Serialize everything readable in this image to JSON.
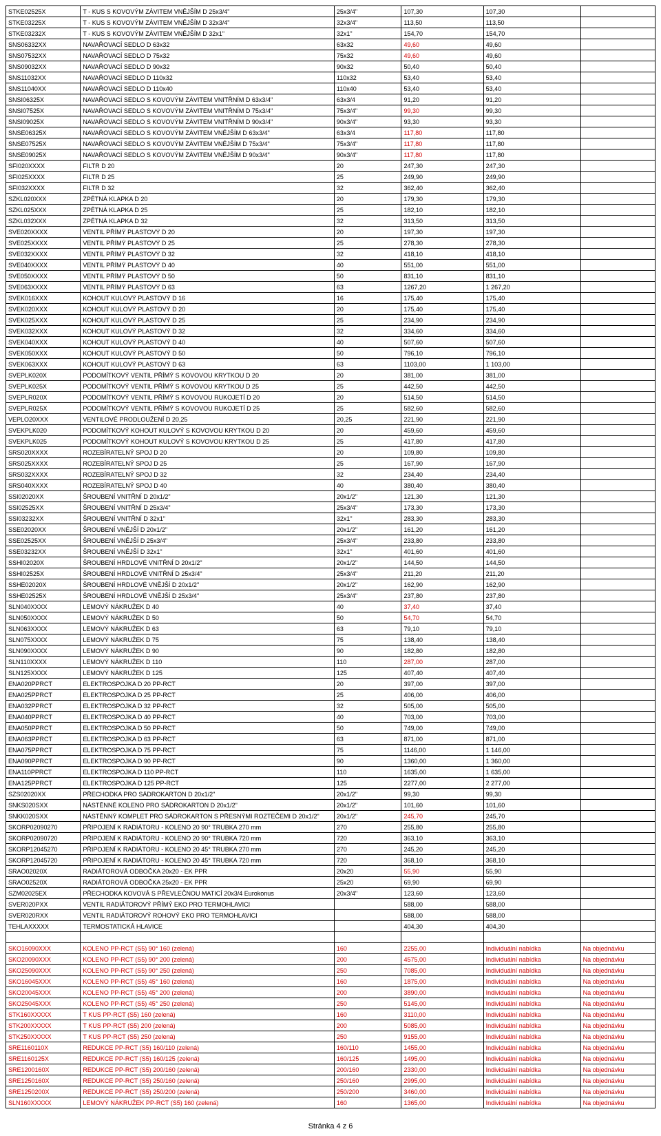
{
  "footer": "Stránka 4 z 6",
  "rows": [
    {
      "c": [
        "STKE02525X",
        "T - KUS S KOVOVÝM ZÁVITEM VNĚJŠÍM D 25x3/4\"",
        "25x3/4\"",
        "107,30",
        "107,30",
        ""
      ]
    },
    {
      "c": [
        "STKE03225X",
        "T - KUS S KOVOVÝM ZÁVITEM VNĚJŠÍM D 32x3/4\"",
        "32x3/4\"",
        "113,50",
        "113,50",
        ""
      ]
    },
    {
      "c": [
        "STKE03232X",
        "T - KUS S KOVOVÝM ZÁVITEM VNĚJŠÍM D 32x1\"",
        "32x1\"",
        "154,70",
        "154,70",
        ""
      ]
    },
    {
      "c": [
        "SNS06332XX",
        "NAVAŘOVACÍ SEDLO D 63x32",
        "63x32",
        "49,60",
        "49,60",
        ""
      ],
      "r3": true
    },
    {
      "c": [
        "SNS07532XX",
        "NAVAŘOVACÍ SEDLO D 75x32",
        "75x32",
        "49,60",
        "49,60",
        ""
      ],
      "r3": true
    },
    {
      "c": [
        "SNS09032XX",
        "NAVAŘOVACÍ SEDLO D 90x32",
        "90x32",
        "50,40",
        "50,40",
        ""
      ]
    },
    {
      "c": [
        "SNS11032XX",
        "NAVAŘOVACÍ SEDLO D 110x32",
        "110x32",
        "53,40",
        "53,40",
        ""
      ]
    },
    {
      "c": [
        "SNS11040XX",
        "NAVAŘOVACÍ SEDLO D 110x40",
        "110x40",
        "53,40",
        "53,40",
        ""
      ]
    },
    {
      "c": [
        "SNSI06325X",
        "NAVAŘOVACÍ SEDLO S KOVOVÝM ZÁVITEM VNITŘNÍM D 63x3/4\"",
        "63x3/4",
        "91,20",
        "91,20",
        ""
      ]
    },
    {
      "c": [
        "SNSI07525X",
        "NAVAŘOVACÍ SEDLO S KOVOVÝM ZÁVITEM VNITŘNÍM D 75x3/4\"",
        "75x3/4\"",
        "99,30",
        "99,30",
        ""
      ],
      "r3": true
    },
    {
      "c": [
        "SNSI09025X",
        "NAVAŘOVACÍ SEDLO S KOVOVÝM ZÁVITEM VNITŘNÍM D 90x3/4\"",
        "90x3/4\"",
        "93,30",
        "93,30",
        ""
      ]
    },
    {
      "c": [
        "SNSE06325X",
        "NAVAŘOVACÍ SEDLO S KOVOVÝM ZÁVITEM VNĚJŠÍM D 63x3/4\"",
        "63x3/4",
        "117,80",
        "117,80",
        ""
      ],
      "r3": true
    },
    {
      "c": [
        "SNSE07525X",
        "NAVAŘOVACÍ SEDLO S KOVOVÝM ZÁVITEM VNĚJŠÍM D 75x3/4\"",
        "75x3/4\"",
        "117,80",
        "117,80",
        ""
      ],
      "r3": true
    },
    {
      "c": [
        "SNSE09025X",
        "NAVAŘOVACÍ SEDLO S KOVOVÝM ZÁVITEM VNĚJŠÍM D 90x3/4\"",
        "90x3/4\"",
        "117,80",
        "117,80",
        ""
      ],
      "r3": true
    },
    {
      "c": [
        "SFI020XXXX",
        "FILTR D 20",
        "20",
        "247,30",
        "247,30",
        ""
      ]
    },
    {
      "c": [
        "SFI025XXXX",
        "FILTR D 25",
        "25",
        "249,90",
        "249,90",
        ""
      ]
    },
    {
      "c": [
        "SFI032XXXX",
        "FILTR D 32",
        "32",
        "362,40",
        "362,40",
        ""
      ]
    },
    {
      "c": [
        "SZKL020XXX",
        "ZPĚTNÁ KLAPKA D 20",
        "20",
        "179,30",
        "179,30",
        ""
      ]
    },
    {
      "c": [
        "SZKL025XXX",
        "ZPĚTNÁ KLAPKA D 25",
        "25",
        "182,10",
        "182,10",
        ""
      ]
    },
    {
      "c": [
        "SZKL032XXX",
        "ZPĚTNÁ KLAPKA D 32",
        "32",
        "313,50",
        "313,50",
        ""
      ]
    },
    {
      "c": [
        "SVE020XXXX",
        "VENTIL PŘÍMÝ PLASTOVÝ D 20",
        "20",
        "197,30",
        "197,30",
        ""
      ]
    },
    {
      "c": [
        "SVE025XXXX",
        "VENTIL PŘÍMÝ PLASTOVÝ D 25",
        "25",
        "278,30",
        "278,30",
        ""
      ]
    },
    {
      "c": [
        "SVE032XXXX",
        "VENTIL PŘÍMÝ PLASTOVÝ D 32",
        "32",
        "418,10",
        "418,10",
        ""
      ]
    },
    {
      "c": [
        "SVE040XXXX",
        "VENTIL PŘÍMÝ PLASTOVÝ D 40",
        "40",
        "551,00",
        "551,00",
        ""
      ]
    },
    {
      "c": [
        "SVE050XXXX",
        "VENTIL PŘÍMÝ PLASTOVÝ D 50",
        "50",
        "831,10",
        "831,10",
        ""
      ]
    },
    {
      "c": [
        "SVE063XXXX",
        "VENTIL PŘÍMÝ PLASTOVÝ D 63",
        "63",
        "1267,20",
        "1 267,20",
        ""
      ]
    },
    {
      "c": [
        "SVEK016XXX",
        "KOHOUT KULOVÝ PLASTOVÝ D 16",
        "16",
        "175,40",
        "175,40",
        ""
      ]
    },
    {
      "c": [
        "SVEK020XXX",
        "KOHOUT KULOVÝ PLASTOVÝ D 20",
        "20",
        "175,40",
        "175,40",
        ""
      ]
    },
    {
      "c": [
        "SVEK025XXX",
        "KOHOUT KULOVÝ PLASTOVÝ D 25",
        "25",
        "234,90",
        "234,90",
        ""
      ]
    },
    {
      "c": [
        "SVEK032XXX",
        "KOHOUT KULOVÝ PLASTOVÝ D 32",
        "32",
        "334,60",
        "334,60",
        ""
      ]
    },
    {
      "c": [
        "SVEK040XXX",
        "KOHOUT KULOVÝ PLASTOVÝ D 40",
        "40",
        "507,60",
        "507,60",
        ""
      ]
    },
    {
      "c": [
        "SVEK050XXX",
        "KOHOUT KULOVÝ PLASTOVÝ D 50",
        "50",
        "796,10",
        "796,10",
        ""
      ]
    },
    {
      "c": [
        "SVEK063XXX",
        "KOHOUT KULOVÝ PLASTOVÝ D 63",
        "63",
        "1103,00",
        "1 103,00",
        ""
      ]
    },
    {
      "c": [
        "SVEPLK020X",
        "PODOMÍTKOVÝ VENTIL PŘÍMÝ S KOVOVOU KRYTKOU D 20",
        "20",
        "381,00",
        "381,00",
        ""
      ]
    },
    {
      "c": [
        "SVEPLK025X",
        "PODOMÍTKOVÝ VENTIL PŘÍMÝ S KOVOVOU KRYTKOU D 25",
        "25",
        "442,50",
        "442,50",
        ""
      ]
    },
    {
      "c": [
        "SVEPLR020X",
        "PODOMÍTKOVÝ VENTIL PŘÍMÝ S KOVOVOU RUKOJETÍ D 20",
        "20",
        "514,50",
        "514,50",
        ""
      ]
    },
    {
      "c": [
        "SVEPLR025X",
        "PODOMÍTKOVÝ VENTIL PŘÍMÝ S KOVOVOU RUKOJETÍ D 25",
        "25",
        "582,60",
        "582,60",
        ""
      ]
    },
    {
      "c": [
        "VEPLO20XXX",
        "VENTILOVÉ PRODLOUŽENÍ D 20,25",
        "20,25",
        "221,90",
        "221,90",
        ""
      ]
    },
    {
      "c": [
        "SVEKPLK020",
        "PODOMÍTKOVÝ KOHOUT KULOVÝ S KOVOVOU KRYTKOU D 20",
        "20",
        "459,60",
        "459,60",
        ""
      ]
    },
    {
      "c": [
        "SVEKPLK025",
        "PODOMÍTKOVÝ KOHOUT KULOVÝ S KOVOVOU KRYTKOU D 25",
        "25",
        "417,80",
        "417,80",
        ""
      ]
    },
    {
      "c": [
        "SRS020XXXX",
        "ROZEBÍRATELNÝ SPOJ D 20",
        "20",
        "109,80",
        "109,80",
        ""
      ]
    },
    {
      "c": [
        "SRS025XXXX",
        "ROZEBÍRATELNÝ SPOJ D 25",
        "25",
        "167,90",
        "167,90",
        ""
      ]
    },
    {
      "c": [
        "SRS032XXXX",
        "ROZEBÍRATELNÝ SPOJ D 32",
        "32",
        "234,40",
        "234,40",
        ""
      ]
    },
    {
      "c": [
        "SRS040XXXX",
        "ROZEBÍRATELNÝ SPOJ D 40",
        "40",
        "380,40",
        "380,40",
        ""
      ]
    },
    {
      "c": [
        "SSI02020XX",
        "ŠROUBENÍ VNITŘNÍ D 20x1/2\"",
        "20x1/2\"",
        "121,30",
        "121,30",
        ""
      ]
    },
    {
      "c": [
        "SSI02525XX",
        "ŠROUBENÍ VNITŘNÍ D 25x3/4\"",
        "25x3/4\"",
        "173,30",
        "173,30",
        ""
      ]
    },
    {
      "c": [
        "SSI03232XX",
        "ŠROUBENÍ VNITŘNÍ D 32x1\"",
        "32x1\"",
        "283,30",
        "283,30",
        ""
      ]
    },
    {
      "c": [
        "SSE02020XX",
        "ŠROUBENÍ VNĚJŠÍ D 20x1/2\"",
        "20x1/2\"",
        "161,20",
        "161,20",
        ""
      ]
    },
    {
      "c": [
        "SSE02525XX",
        "ŠROUBENÍ VNĚJŠÍ D 25x3/4\"",
        "25x3/4\"",
        "233,80",
        "233,80",
        ""
      ]
    },
    {
      "c": [
        "SSE03232XX",
        "ŠROUBENÍ VNĚJŠÍ D 32x1\"",
        "32x1\"",
        "401,60",
        "401,60",
        ""
      ]
    },
    {
      "c": [
        "SSHI02020X",
        "ŠROUBENÍ HRDLOVÉ VNITŘNÍ D 20x1/2\"",
        "20x1/2\"",
        "144,50",
        "144,50",
        ""
      ]
    },
    {
      "c": [
        "SSHI02525X",
        "ŠROUBENÍ HRDLOVÉ VNITŘNÍ D 25x3/4\"",
        "25x3/4\"",
        "211,20",
        "211,20",
        ""
      ]
    },
    {
      "c": [
        "SSHE02020X",
        "ŠROUBENÍ HRDLOVÉ VNĚJŠÍ D 20x1/2\"",
        "20x1/2\"",
        "162,90",
        "162,90",
        ""
      ]
    },
    {
      "c": [
        "SSHE02525X",
        "ŠROUBENÍ HRDLOVÉ VNĚJŠÍ D 25x3/4\"",
        "25x3/4\"",
        "237,80",
        "237,80",
        ""
      ]
    },
    {
      "c": [
        "SLN040XXXX",
        "LEMOVÝ NÁKRUŽEK D 40",
        "40",
        "37,40",
        "37,40",
        ""
      ],
      "r3": true
    },
    {
      "c": [
        "SLN050XXXX",
        "LEMOVÝ NÁKRUŽEK D 50",
        "50",
        "54,70",
        "54,70",
        ""
      ],
      "r3": true
    },
    {
      "c": [
        "SLN063XXXX",
        "LEMOVÝ NÁKRUŽEK D 63",
        "63",
        "79,10",
        "79,10",
        ""
      ]
    },
    {
      "c": [
        "SLN075XXXX",
        "LEMOVÝ NÁKRUŽEK D 75",
        "75",
        "138,40",
        "138,40",
        ""
      ]
    },
    {
      "c": [
        "SLN090XXXX",
        "LEMOVÝ NÁKRUŽEK D 90",
        "90",
        "182,80",
        "182,80",
        ""
      ]
    },
    {
      "c": [
        "SLN110XXXX",
        "LEMOVÝ NÁKRUŽEK D 110",
        "110",
        "287,00",
        "287,00",
        ""
      ],
      "r3": true
    },
    {
      "c": [
        "SLN125XXXX",
        "LEMOVÝ NÁKRUŽEK D 125",
        "125",
        "407,40",
        "407,40",
        ""
      ]
    },
    {
      "c": [
        "ENA020PPRCT",
        "ELEKTROSPOJKA D 20 PP-RCT",
        "20",
        "397,00",
        "397,00",
        ""
      ]
    },
    {
      "c": [
        "ENA025PPRCT",
        "ELEKTROSPOJKA D 25 PP-RCT",
        "25",
        "406,00",
        "406,00",
        ""
      ]
    },
    {
      "c": [
        "ENA032PPRCT",
        "ELEKTROSPOJKA D 32 PP-RCT",
        "32",
        "505,00",
        "505,00",
        ""
      ]
    },
    {
      "c": [
        "ENA040PPRCT",
        "ELEKTROSPOJKA D 40 PP-RCT",
        "40",
        "703,00",
        "703,00",
        ""
      ]
    },
    {
      "c": [
        "ENA050PPRCT",
        "ELEKTROSPOJKA D 50 PP-RCT",
        "50",
        "749,00",
        "749,00",
        ""
      ]
    },
    {
      "c": [
        "ENA063PPRCT",
        "ELEKTROSPOJKA D 63 PP-RCT",
        "63",
        "871,00",
        "871,00",
        ""
      ]
    },
    {
      "c": [
        "ENA075PPRCT",
        "ELEKTROSPOJKA D 75 PP-RCT",
        "75",
        "1146,00",
        "1 146,00",
        ""
      ]
    },
    {
      "c": [
        "ENA090PPRCT",
        "ELEKTROSPOJKA D 90 PP-RCT",
        "90",
        "1360,00",
        "1 360,00",
        ""
      ]
    },
    {
      "c": [
        "ENA110PPRCT",
        "ELEKTROSPOJKA D 110 PP-RCT",
        "110",
        "1635,00",
        "1 635,00",
        ""
      ]
    },
    {
      "c": [
        "ENA125PPRCT",
        "ELEKTROSPOJKA D 125 PP-RCT",
        "125",
        "2277,00",
        "2 277,00",
        ""
      ]
    },
    {
      "c": [
        "SZS02020XX",
        "PŘECHODKA PRO SÁDROKARTON D 20x1/2\"",
        "20x1/2\"",
        "99,30",
        "99,30",
        ""
      ]
    },
    {
      "c": [
        "SNKS020SXX",
        "NÁSTĚNNÉ KOLENO PRO SÁDROKARTON D 20x1/2\"",
        "20x1/2\"",
        "101,60",
        "101,60",
        ""
      ]
    },
    {
      "c": [
        "SNKK020SXX",
        "NÁSTĚNNÝ KOMPLET PRO SÁDROKARTON S PŘESNÝMI ROZTEČEMI D 20x1/2\"",
        "20x1/2\"",
        "245,70",
        "245,70",
        ""
      ],
      "r3": true
    },
    {
      "c": [
        "SKORP02090270",
        "PŘIPOJENÍ K RADIÁTORU  - KOLENO 20 90° TRUBKA 270 mm",
        "270",
        "255,80",
        "255,80",
        ""
      ]
    },
    {
      "c": [
        "SKORP02090720",
        "PŘIPOJENÍ K RADIÁTORU  - KOLENO 20 90° TRUBKA 720 mm",
        "720",
        "363,10",
        "363,10",
        ""
      ]
    },
    {
      "c": [
        "SKORP12045270",
        "PŘIPOJENÍ K RADIÁTORU  - KOLENO 20 45° TRUBKA 270 mm",
        "270",
        "245,20",
        "245,20",
        ""
      ]
    },
    {
      "c": [
        "SKORP12045720",
        "PŘIPOJENÍ K RADIÁTORU  - KOLENO 20 45° TRUBKA 720 mm",
        "720",
        "368,10",
        "368,10",
        ""
      ]
    },
    {
      "c": [
        "SRAO02020X",
        "RADIÁTOROVÁ ODBOČKA 20x20 - EK PPR",
        "20x20",
        "55,90",
        "55,90",
        ""
      ],
      "r3": true
    },
    {
      "c": [
        "SRAO02520X",
        "RADIÁTOROVÁ ODBOČKA 25x20 - EK PPR",
        "25x20",
        "69,90",
        "69,90",
        ""
      ]
    },
    {
      "c": [
        "SZM02025EX",
        "PŘECHODKA KOVOVÁ S PŘEVLEČNOU MATICÍ 20x3/4 Eurokonus",
        "20x3/4\"",
        "123,60",
        "123,60",
        ""
      ]
    },
    {
      "c": [
        "SVER020PXX",
        "VENTIL RADIÁTOROVÝ PŘÍMÝ EKO PRO TERMOHLAVICI",
        "",
        "588,00",
        "588,00",
        ""
      ]
    },
    {
      "c": [
        "SVER020RXX",
        "VENTIL RADIÁTOROVÝ ROHOVÝ EKO PRO TERMOHLAVICI",
        "",
        "588,00",
        "588,00",
        ""
      ]
    },
    {
      "c": [
        "TEHLAXXXXX",
        "TERMOSTATICKÁ HLAVICE",
        "",
        "404,30",
        "404,30",
        ""
      ]
    },
    {
      "c": [
        "",
        "",
        "",
        "",
        "",
        ""
      ]
    },
    {
      "c": [
        "SKO16090XXX",
        "KOLENO PP-RCT (S5) 90° 160 (zelená)",
        "160",
        "2255,00",
        "Individuální nabídka",
        "Na objednávku"
      ],
      "allred": true
    },
    {
      "c": [
        "SKO20090XXX",
        "KOLENO PP-RCT (S5) 90° 200 (zelená)",
        "200",
        "4575,00",
        "Individuální nabídka",
        "Na objednávku"
      ],
      "allred": true
    },
    {
      "c": [
        "SKO25090XXX",
        "KOLENO PP-RCT (S5) 90° 250 (zelená)",
        "250",
        "7085,00",
        "Individuální nabídka",
        "Na objednávku"
      ],
      "allred": true
    },
    {
      "c": [
        "SKO16045XXX",
        "KOLENO PP-RCT (S5) 45° 160 (zelená)",
        "160",
        "1875,00",
        "Individuální nabídka",
        "Na objednávku"
      ],
      "allred": true
    },
    {
      "c": [
        "SKO20045XXX",
        "KOLENO PP-RCT (S5) 45° 200 (zelená)",
        "200",
        "3890,00",
        "Individuální nabídka",
        "Na objednávku"
      ],
      "allred": true
    },
    {
      "c": [
        "SKO25045XXX",
        "KOLENO PP-RCT (S5) 45° 250 (zelená)",
        "250",
        "5145,00",
        "Individuální nabídka",
        "Na objednávku"
      ],
      "allred": true
    },
    {
      "c": [
        "STK160XXXXX",
        "T KUS PP-RCT (S5) 160 (zelená)",
        "160",
        "3110,00",
        "Individuální nabídka",
        "Na objednávku"
      ],
      "allred": true
    },
    {
      "c": [
        "STK200XXXXX",
        "T KUS PP-RCT (S5) 200 (zelená)",
        "200",
        "5085,00",
        "Individuální nabídka",
        "Na objednávku"
      ],
      "allred": true
    },
    {
      "c": [
        "STK250XXXXX",
        "T KUS PP-RCT (S5) 250 (zelená)",
        "250",
        "9155,00",
        "Individuální nabídka",
        "Na objednávku"
      ],
      "allred": true
    },
    {
      "c": [
        "SRE1160110X",
        "REDUKCE PP-RCT (S5) 160/110 (zelená)",
        "160/110",
        "1455,00",
        "Individuální nabídka",
        "Na objednávku"
      ],
      "allred": true
    },
    {
      "c": [
        "SRE1160125X",
        "REDUKCE PP-RCT (S5) 160/125 (zelená)",
        "160/125",
        "1495,00",
        "Individuální nabídka",
        "Na objednávku"
      ],
      "allred": true
    },
    {
      "c": [
        "SRE1200160X",
        "REDUKCE PP-RCT (S5) 200/160 (zelená)",
        "200/160",
        "2330,00",
        "Individuální nabídka",
        "Na objednávku"
      ],
      "allred": true
    },
    {
      "c": [
        "SRE1250160X",
        "REDUKCE PP-RCT (S5) 250/160 (zelená)",
        "250/160",
        "2995,00",
        "Individuální nabídka",
        "Na objednávku"
      ],
      "allred": true
    },
    {
      "c": [
        "SRE1250200X",
        "REDUKCE PP-RCT (S5) 250/200 (zelená)",
        "250/200",
        "3460,00",
        "Individuální nabídka",
        "Na objednávku"
      ],
      "allred": true
    },
    {
      "c": [
        "SLN160XXXXX",
        "LEMOVÝ NÁKRUŽEK PP-RCT (S5) 160 (zelená)",
        "160",
        "1365,00",
        "Individuální nabídka",
        "Na objednávku"
      ],
      "allred": true
    }
  ]
}
